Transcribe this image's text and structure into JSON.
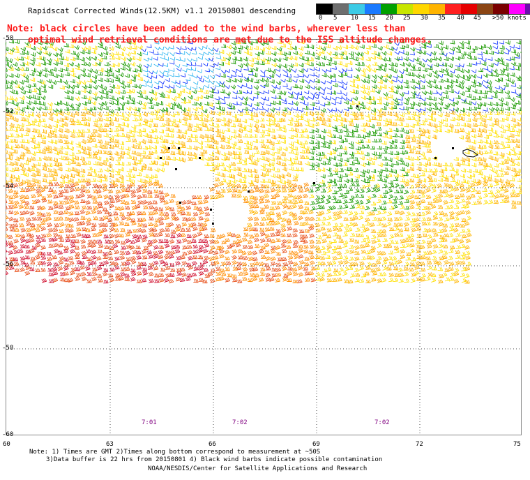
{
  "title": "Rapidscat Corrected Winds(12.5KM) v1.1 20150801 descending",
  "note": {
    "line1": "Note: black circles have been added to the wind barbs, wherever less than",
    "line2": "optimal wind retrieval conditions are met due to the ISS altitude changes."
  },
  "legend": {
    "colors": [
      "#000000",
      "#6e6e6e",
      "#3ccbe6",
      "#1a7aff",
      "#00a000",
      "#c8e600",
      "#ffd700",
      "#ffb400",
      "#ff2020",
      "#e60000",
      "#8b4513",
      "#7a0000",
      "#ff00ff",
      "#6a0dad"
    ],
    "ticks": [
      "0",
      "5",
      "10",
      "15",
      "20",
      "25",
      "30",
      "35",
      "40",
      "45",
      ">50 knots"
    ],
    "unit": "knots"
  },
  "axes": {
    "lat_labels": [
      "-50",
      "-52",
      "-54",
      "-56",
      "-58",
      "-60"
    ],
    "lon_labels": [
      "60",
      "63",
      "66",
      "69",
      "72",
      "75"
    ],
    "lat_range": [
      -60,
      -50
    ],
    "lon_range": [
      60,
      75
    ]
  },
  "times": [
    "7:01",
    "7:02",
    "7:02"
  ],
  "footer": {
    "line1": "Note: 1) Times are GMT 2)Times along bottom correspond to measurement at ~50S",
    "line2": "3)Data buffer is 22 hrs from 20150801 4) Black wind barbs indicate possible contamination",
    "line3": "NOAA/NESDIS/Center for Satellite Applications and Research"
  },
  "map_style": {
    "gridlines": "dotted",
    "grid_color": "#444444",
    "speed_colors": {
      "15-20": "#1a3cff",
      "10-15": "#35b8f0",
      "20-25": "#1a9a00",
      "25-30": "#ffe000",
      "30-35": "#ffb400",
      "35-40": "#ff8c00",
      "40-45": "#e8501a",
      "45-50": "#d01030"
    }
  }
}
